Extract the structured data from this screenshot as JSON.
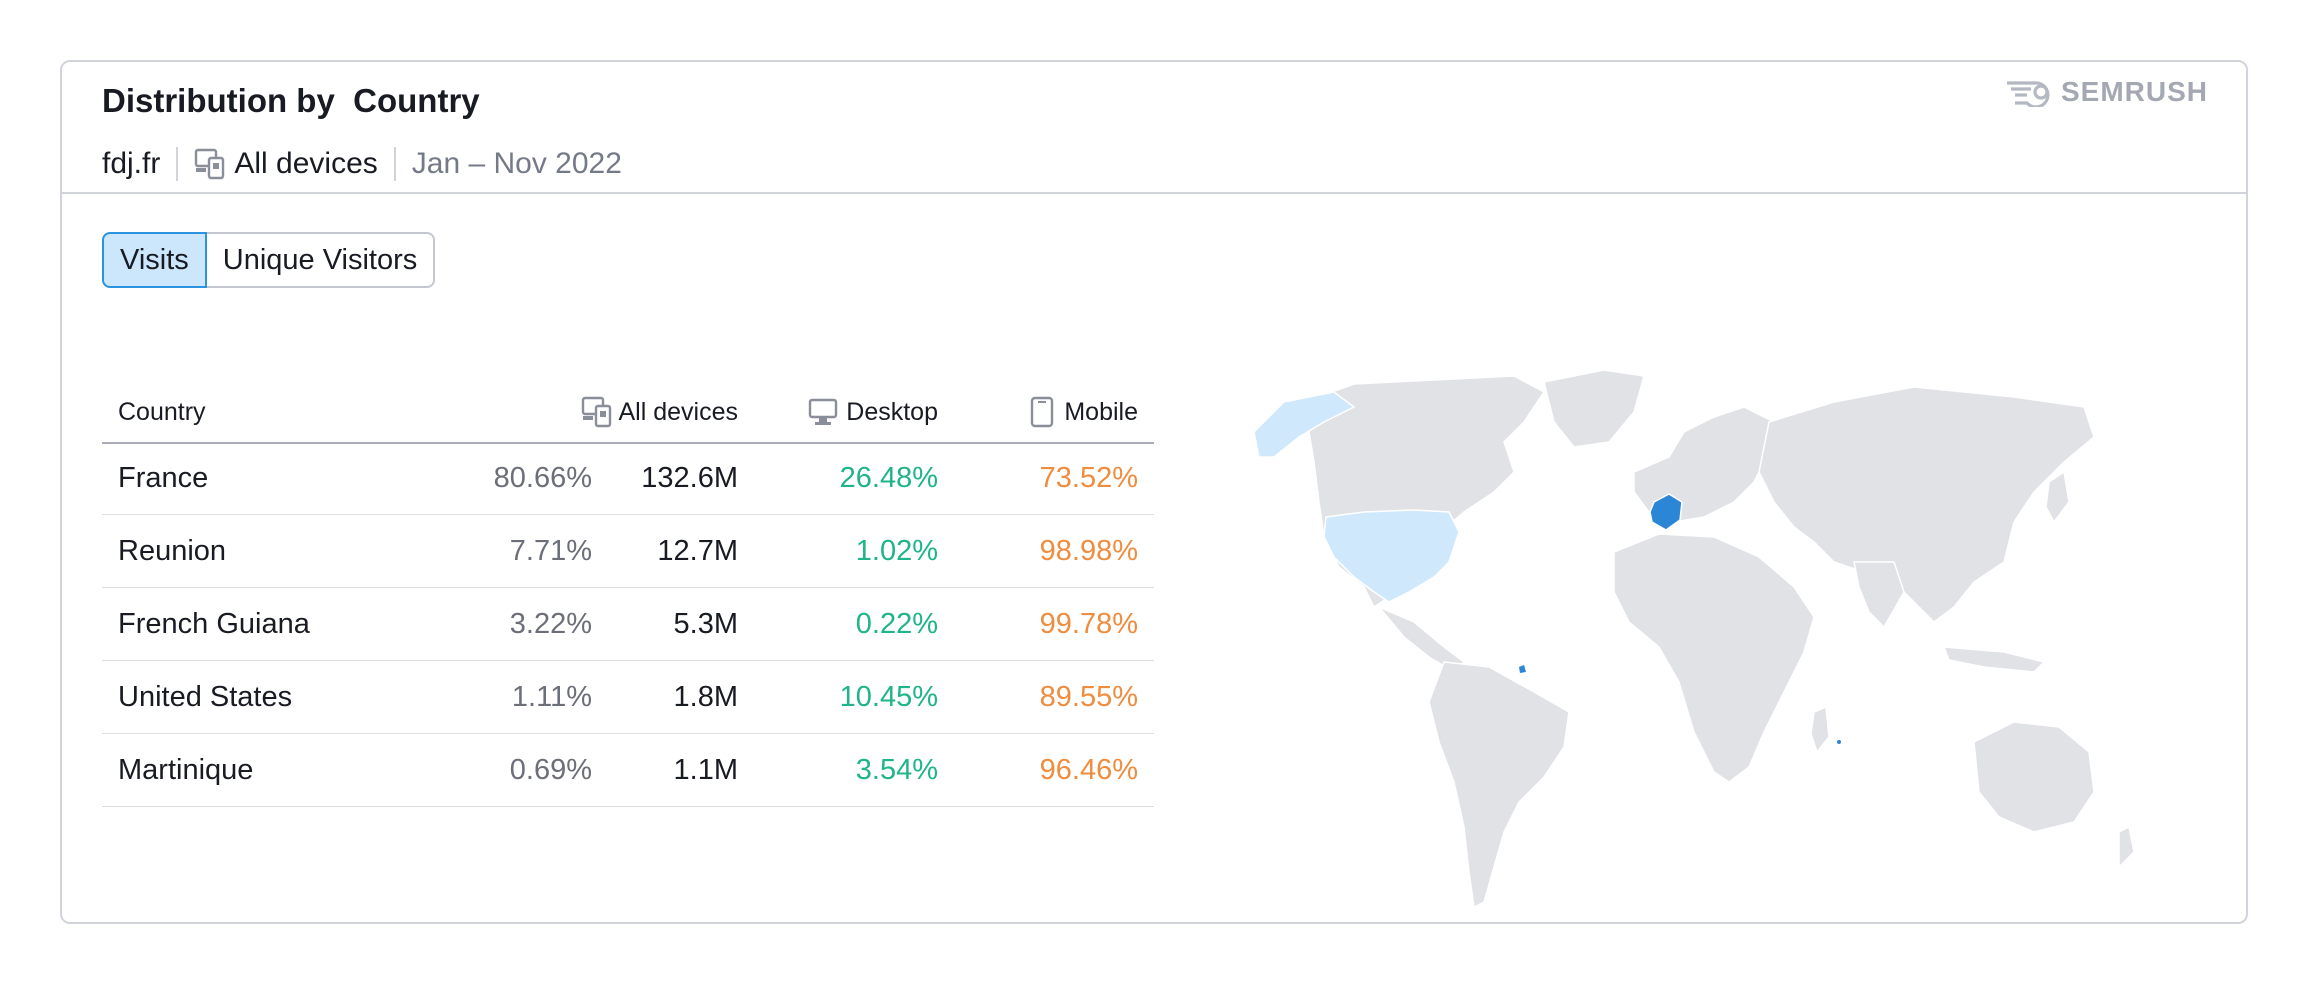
{
  "header": {
    "title": "Distribution by  Country",
    "domain": "fdj.fr",
    "devices_label": "All devices",
    "period": "Jan – Nov 2022",
    "brand": "SEMRUSH"
  },
  "tabs": [
    {
      "label": "Visits",
      "active": true
    },
    {
      "label": "Unique Visitors",
      "active": false
    }
  ],
  "table": {
    "columns": [
      "Country",
      "All devices",
      "Desktop",
      "Mobile"
    ],
    "rows": [
      {
        "country": "France",
        "share": "80.66%",
        "visits": "132.6M",
        "desktop": "26.48%",
        "mobile": "73.52%"
      },
      {
        "country": "Reunion",
        "share": "7.71%",
        "visits": "12.7M",
        "desktop": "1.02%",
        "mobile": "98.98%"
      },
      {
        "country": "French Guiana",
        "share": "3.22%",
        "visits": "5.3M",
        "desktop": "0.22%",
        "mobile": "99.78%"
      },
      {
        "country": "United States",
        "share": "1.11%",
        "visits": "1.8M",
        "desktop": "10.45%",
        "mobile": "89.55%"
      },
      {
        "country": "Martinique",
        "share": "0.69%",
        "visits": "1.1M",
        "desktop": "3.54%",
        "mobile": "96.46%"
      }
    ]
  },
  "map": {
    "highlight_strong": "#2b86d6",
    "highlight_light": "#cfe8fb",
    "land_color": "#e1e2e6"
  },
  "colors": {
    "desktop": "#1fb48a",
    "mobile": "#f08c3e",
    "tab_active_bg": "#cce7fc",
    "tab_active_border": "#2b94e1"
  },
  "icons": [
    "devices-icon",
    "desktop-icon",
    "mobile-icon",
    "semrush-logo-icon"
  ]
}
